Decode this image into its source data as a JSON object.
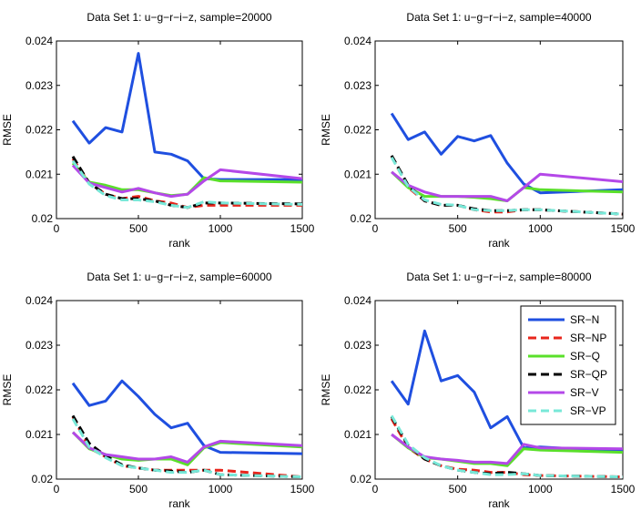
{
  "chart_data": [
    {
      "type": "line",
      "title": "Data Set 1: u−g−r−i−z, sample=20000",
      "xlabel": "rank",
      "ylabel": "RMSE",
      "xlim": [
        0,
        1500
      ],
      "ylim": [
        0.02,
        0.024
      ],
      "xticks": [
        0,
        500,
        1000,
        1500
      ],
      "yticks": [
        0.02,
        0.021,
        0.022,
        0.023,
        0.024
      ],
      "x": [
        100,
        200,
        300,
        400,
        500,
        600,
        700,
        800,
        900,
        1000,
        1500
      ],
      "series": [
        {
          "name": "SR−N",
          "values": [
            0.0222,
            0.0217,
            0.02205,
            0.02195,
            0.02372,
            0.0215,
            0.02145,
            0.0213,
            0.0209,
            0.02088,
            0.02088
          ]
        },
        {
          "name": "SR−NP",
          "values": [
            0.02135,
            0.0208,
            0.02055,
            0.02045,
            0.0205,
            0.0204,
            0.02035,
            0.02025,
            0.0203,
            0.0203,
            0.0203
          ]
        },
        {
          "name": "SR−Q",
          "values": [
            0.02125,
            0.02082,
            0.02075,
            0.02065,
            0.02065,
            0.02058,
            0.02052,
            0.02055,
            0.02092,
            0.02085,
            0.02082
          ]
        },
        {
          "name": "SR−QP",
          "values": [
            0.0214,
            0.0208,
            0.02055,
            0.02045,
            0.02045,
            0.0204,
            0.0203,
            0.02025,
            0.02035,
            0.02035,
            0.02033
          ]
        },
        {
          "name": "SR−V",
          "values": [
            0.0212,
            0.0208,
            0.0207,
            0.0206,
            0.02068,
            0.02058,
            0.0205,
            0.02055,
            0.02085,
            0.0211,
            0.0209
          ]
        },
        {
          "name": "SR−VP",
          "values": [
            0.0213,
            0.02078,
            0.02052,
            0.02042,
            0.02042,
            0.02038,
            0.0203,
            0.02025,
            0.02038,
            0.02035,
            0.02032
          ]
        }
      ]
    },
    {
      "type": "line",
      "title": "Data Set 1: u−g−r−i−z, sample=40000",
      "xlabel": "rank",
      "ylabel": "RMSE",
      "xlim": [
        0,
        1500
      ],
      "ylim": [
        0.02,
        0.024
      ],
      "xticks": [
        0,
        500,
        1000,
        1500
      ],
      "yticks": [
        0.02,
        0.021,
        0.022,
        0.023,
        0.024
      ],
      "x": [
        100,
        200,
        300,
        400,
        500,
        600,
        700,
        800,
        900,
        1000,
        1500
      ],
      "series": [
        {
          "name": "SR−N",
          "values": [
            0.02237,
            0.02178,
            0.02195,
            0.02145,
            0.02185,
            0.02175,
            0.02187,
            0.02125,
            0.02078,
            0.02058,
            0.02065
          ]
        },
        {
          "name": "SR−NP",
          "values": [
            0.0214,
            0.0207,
            0.0204,
            0.0203,
            0.0203,
            0.0202,
            0.02015,
            0.02015,
            0.0202,
            0.0202,
            0.0201
          ]
        },
        {
          "name": "SR−Q",
          "values": [
            0.02105,
            0.0207,
            0.0205,
            0.0205,
            0.0205,
            0.02048,
            0.02045,
            0.0204,
            0.0207,
            0.02065,
            0.0206
          ]
        },
        {
          "name": "SR−QP",
          "values": [
            0.02142,
            0.02075,
            0.0204,
            0.0203,
            0.0203,
            0.02022,
            0.02018,
            0.02018,
            0.0202,
            0.0202,
            0.0201
          ]
        },
        {
          "name": "SR−V",
          "values": [
            0.02105,
            0.02075,
            0.0206,
            0.0205,
            0.0205,
            0.0205,
            0.0205,
            0.0204,
            0.0207,
            0.021,
            0.02083
          ]
        },
        {
          "name": "SR−VP",
          "values": [
            0.02138,
            0.02072,
            0.02042,
            0.02032,
            0.0203,
            0.0202,
            0.02018,
            0.02018,
            0.0202,
            0.0202,
            0.0201
          ]
        }
      ]
    },
    {
      "type": "line",
      "title": "Data Set 1: u−g−r−i−z, sample=60000",
      "xlabel": "rank",
      "ylabel": "RMSE",
      "xlim": [
        0,
        1500
      ],
      "ylim": [
        0.02,
        0.024
      ],
      "xticks": [
        0,
        500,
        1000,
        1500
      ],
      "yticks": [
        0.02,
        0.021,
        0.022,
        0.023,
        0.024
      ],
      "x": [
        100,
        200,
        300,
        400,
        500,
        600,
        700,
        800,
        900,
        1000,
        1500
      ],
      "series": [
        {
          "name": "SR−N",
          "values": [
            0.02215,
            0.02165,
            0.02175,
            0.0222,
            0.02185,
            0.02145,
            0.02115,
            0.02125,
            0.02075,
            0.0206,
            0.02057
          ]
        },
        {
          "name": "SR−NP",
          "values": [
            0.0214,
            0.0207,
            0.0205,
            0.0203,
            0.02025,
            0.0202,
            0.0202,
            0.0202,
            0.0202,
            0.0202,
            0.02005
          ]
        },
        {
          "name": "SR−Q",
          "values": [
            0.02105,
            0.02068,
            0.02055,
            0.02045,
            0.02042,
            0.02045,
            0.02045,
            0.02032,
            0.0207,
            0.02082,
            0.02072
          ]
        },
        {
          "name": "SR−QP",
          "values": [
            0.02142,
            0.0208,
            0.02052,
            0.02032,
            0.02025,
            0.0202,
            0.02018,
            0.02015,
            0.0202,
            0.0201,
            0.02005
          ]
        },
        {
          "name": "SR−V",
          "values": [
            0.02105,
            0.0207,
            0.02055,
            0.0205,
            0.02045,
            0.02045,
            0.0205,
            0.02038,
            0.02072,
            0.02085,
            0.02075
          ]
        },
        {
          "name": "SR−VP",
          "values": [
            0.02135,
            0.02072,
            0.02048,
            0.0203,
            0.02025,
            0.0202,
            0.02015,
            0.02015,
            0.0202,
            0.0201,
            0.02005
          ]
        }
      ]
    },
    {
      "type": "line",
      "title": "Data Set 1: u−g−r−i−z, sample=80000",
      "xlabel": "rank",
      "ylabel": "RMSE",
      "xlim": [
        0,
        1500
      ],
      "ylim": [
        0.02,
        0.024
      ],
      "xticks": [
        0,
        500,
        1000,
        1500
      ],
      "yticks": [
        0.02,
        0.021,
        0.022,
        0.023,
        0.024
      ],
      "legend_position": "top-right",
      "x": [
        100,
        200,
        300,
        400,
        500,
        600,
        700,
        800,
        900,
        1000,
        1500
      ],
      "series": [
        {
          "name": "SR−N",
          "values": [
            0.0222,
            0.02168,
            0.02332,
            0.0222,
            0.02232,
            0.02195,
            0.02115,
            0.0214,
            0.0207,
            0.02072,
            0.02062
          ]
        },
        {
          "name": "SR−NP",
          "values": [
            0.02135,
            0.0207,
            0.02045,
            0.0203,
            0.02022,
            0.0202,
            0.02015,
            0.02015,
            0.0201,
            0.02008,
            0.02005
          ]
        },
        {
          "name": "SR−Q",
          "values": [
            0.021,
            0.0207,
            0.02048,
            0.02045,
            0.0204,
            0.02035,
            0.02035,
            0.0203,
            0.02068,
            0.02065,
            0.0206
          ]
        },
        {
          "name": "SR−QP",
          "values": [
            0.0214,
            0.02075,
            0.02045,
            0.0203,
            0.0202,
            0.02015,
            0.02012,
            0.02015,
            0.02012,
            0.02008,
            0.02005
          ]
        },
        {
          "name": "SR−V",
          "values": [
            0.021,
            0.02072,
            0.0205,
            0.02045,
            0.02042,
            0.02038,
            0.02038,
            0.02035,
            0.02078,
            0.0207,
            0.02068
          ]
        },
        {
          "name": "SR−VP",
          "values": [
            0.02142,
            0.02078,
            0.02048,
            0.0203,
            0.0202,
            0.02015,
            0.0201,
            0.0201,
            0.02012,
            0.02008,
            0.02005
          ]
        }
      ]
    }
  ],
  "styles": {
    "SR−N": {
      "color": "#1f4fe0",
      "dash": false
    },
    "SR−NP": {
      "color": "#e8261c",
      "dash": true
    },
    "SR−Q": {
      "color": "#5ae02a",
      "dash": false
    },
    "SR−QP": {
      "color": "#000000",
      "dash": true
    },
    "SR−V": {
      "color": "#b448e8",
      "dash": false
    },
    "SR−VP": {
      "color": "#78e8d8",
      "dash": true
    }
  }
}
